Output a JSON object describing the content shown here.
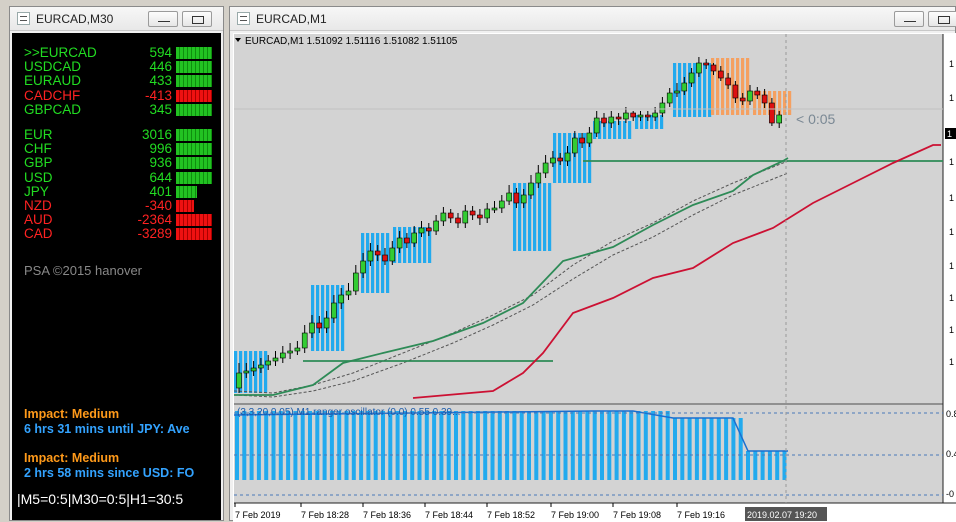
{
  "left_window": {
    "title": "EURCAD,M30",
    "pairs": [
      {
        "name": ">>EURCAD",
        "value": "594",
        "color": "green",
        "bar": 36
      },
      {
        "name": "USDCAD",
        "value": "446",
        "color": "green",
        "bar": 36
      },
      {
        "name": "EURAUD",
        "value": "433",
        "color": "green",
        "bar": 36
      },
      {
        "name": "CADCHF",
        "value": "-413",
        "color": "red",
        "bar": 36
      },
      {
        "name": "GBPCAD",
        "value": "345",
        "color": "green",
        "bar": 36
      }
    ],
    "currencies": [
      {
        "name": "EUR",
        "value": "3016",
        "color": "green",
        "bar": 36
      },
      {
        "name": "CHF",
        "value": "996",
        "color": "green",
        "bar": 36
      },
      {
        "name": "GBP",
        "value": "936",
        "color": "green",
        "bar": 36
      },
      {
        "name": "USD",
        "value": "644",
        "color": "green",
        "bar": 36
      },
      {
        "name": "JPY",
        "value": "401",
        "color": "green",
        "bar": 21
      },
      {
        "name": "NZD",
        "value": "-340",
        "color": "red",
        "bar": 18
      },
      {
        "name": "AUD",
        "value": "-2364",
        "color": "red",
        "bar": 36
      },
      {
        "name": "CAD",
        "value": "-3289",
        "color": "red",
        "bar": 36
      }
    ],
    "copyright": "PSA ©2015 hanover",
    "news": [
      {
        "impact": "Impact: Medium",
        "text": "6 hrs 31 mins until JPY: Ave"
      },
      {
        "impact": "Impact: Medium",
        "text": "2 hrs 58 mins since USD: FO"
      }
    ],
    "timeframes": "|M5=0:5|M30=0:5|H1=30:5"
  },
  "right_window": {
    "title": "EURCAD,M1",
    "chart_header": "EURCAD,M1  1.51092 1.51116 1.51082 1.51105",
    "countdown": "< 0:05",
    "x_labels": [
      "7 Feb 2019",
      "7 Feb 18:28",
      "7 Feb 18:36",
      "7 Feb 18:44",
      "7 Feb 18:52",
      "7 Feb 19:00",
      "7 Feb 19:08",
      "7 Feb 19:16",
      "2019.02.07 19:20"
    ],
    "y_labels_main": [
      "1",
      "1",
      "1",
      "1",
      "1",
      "1",
      "1",
      "1",
      "1",
      "1"
    ],
    "y_labels_sub": [
      "0.8",
      "0.4",
      "-0"
    ],
    "sub_header": "(3,3,20,0.05) M1 ranger oscillator (0.0) 0.55 0.39..."
  },
  "colors": {
    "bull": "#33cc33",
    "bear": "#dd1111",
    "ranger_blue": "#22aaee",
    "ranger_orange": "#f5a060",
    "line_green": "#2e8b57",
    "line_red": "#cc1133"
  }
}
